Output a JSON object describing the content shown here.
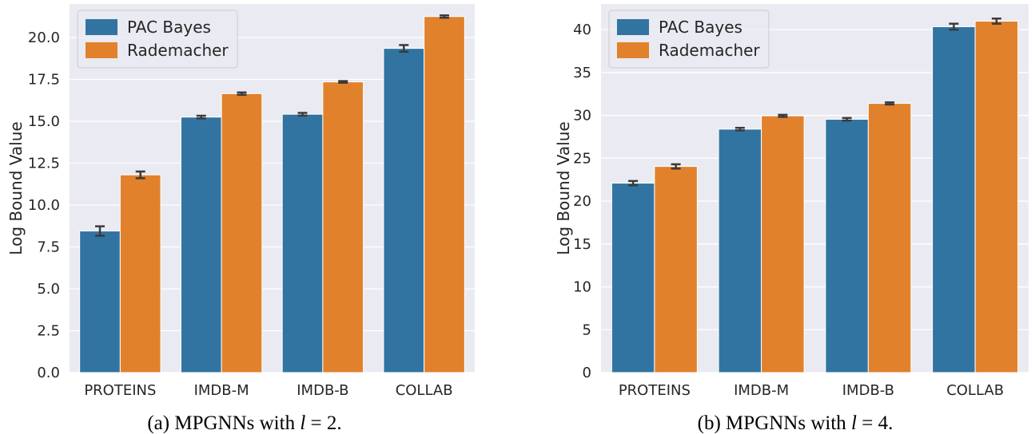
{
  "colors": {
    "pac_bayes": "#3274a1",
    "rademacher": "#e1812c",
    "plot_background": "#eaeaf2",
    "grid": "#ffffff",
    "error_bar": "#3a3a3a"
  },
  "chart_data": [
    {
      "type": "bar",
      "caption_prefix": "(a) MPGNNs with ",
      "caption_var": "l",
      "caption_suffix": " = 2.",
      "xlabel": "",
      "ylabel": "Log Bound Value",
      "ylim": [
        0,
        22
      ],
      "yticks": [
        0,
        2.5,
        5,
        7.5,
        10,
        12.5,
        15,
        17.5,
        20
      ],
      "ytick_labels": [
        "0.0",
        "2.5",
        "5.0",
        "7.5",
        "10.0",
        "12.5",
        "15.0",
        "17.5",
        "20.0"
      ],
      "grid": true,
      "legend_position": "top-left",
      "categories": [
        "PROTEINS",
        "IMDB-M",
        "IMDB-B",
        "COLLAB"
      ],
      "series": [
        {
          "name": "PAC Bayes",
          "color_key": "pac_bayes",
          "values": [
            8.45,
            15.25,
            15.42,
            19.35
          ],
          "errors": [
            0.28,
            0.08,
            0.08,
            0.2
          ]
        },
        {
          "name": "Rademacher",
          "color_key": "rademacher",
          "values": [
            11.8,
            16.65,
            17.35,
            21.25
          ],
          "errors": [
            0.2,
            0.07,
            0.05,
            0.07
          ]
        }
      ]
    },
    {
      "type": "bar",
      "caption_prefix": "(b) MPGNNs with ",
      "caption_var": "l",
      "caption_suffix": " = 4.",
      "xlabel": "",
      "ylabel": "Log Bound Value",
      "ylim": [
        0,
        43
      ],
      "yticks": [
        0,
        5,
        10,
        15,
        20,
        25,
        30,
        35,
        40
      ],
      "ytick_labels": [
        "0",
        "5",
        "10",
        "15",
        "20",
        "25",
        "30",
        "35",
        "40"
      ],
      "grid": true,
      "legend_position": "top-left",
      "categories": [
        "PROTEINS",
        "IMDB-M",
        "IMDB-B",
        "COLLAB"
      ],
      "series": [
        {
          "name": "PAC Bayes",
          "color_key": "pac_bayes",
          "values": [
            22.1,
            28.4,
            29.55,
            40.35
          ],
          "errors": [
            0.25,
            0.15,
            0.15,
            0.35
          ]
        },
        {
          "name": "Rademacher",
          "color_key": "rademacher",
          "values": [
            24.05,
            29.95,
            31.4,
            41.0
          ],
          "errors": [
            0.25,
            0.12,
            0.12,
            0.3
          ]
        }
      ]
    }
  ]
}
